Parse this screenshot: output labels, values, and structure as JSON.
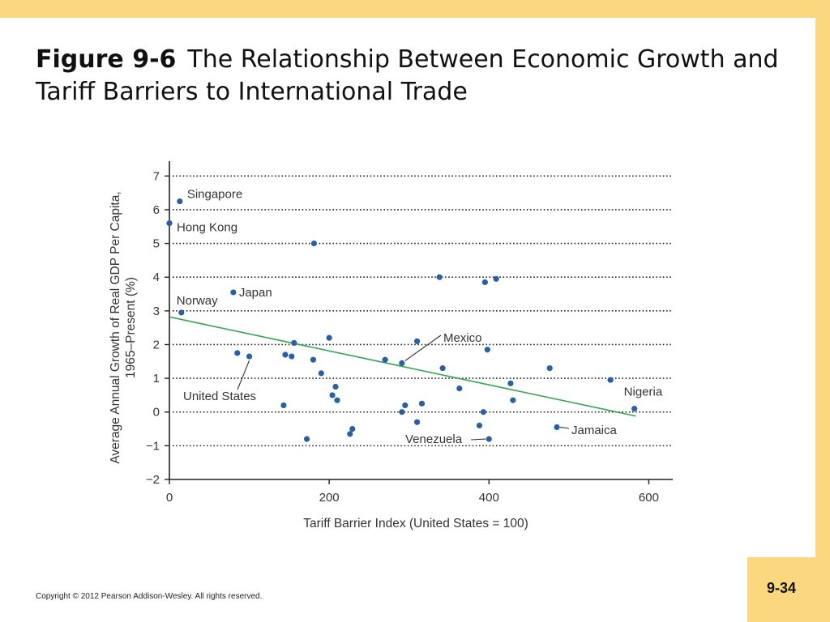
{
  "slide": {
    "title_prefix": "Figure 9-6",
    "title_text": "The Relationship Between Economic Growth and Tariff Barriers to International Trade",
    "copyright": "Copyright © 2012 Pearson Addison-Wesley. All rights reserved.",
    "page_number": "9-34"
  },
  "colors": {
    "banner": "#fbd87f",
    "points": "#2b5fa3",
    "trend_line": "#3aa655",
    "gridlines": "#222222"
  },
  "chart_data": {
    "type": "scatter",
    "title": "",
    "xlabel": "Tariff Barrier Index (United States = 100)",
    "ylabel": [
      "Average Annual Growth of Real GDP Per Capita,",
      "1965–Present (%)"
    ],
    "xlim": [
      0,
      630
    ],
    "ylim": [
      -2,
      7.2
    ],
    "xticks": [
      0,
      200,
      400,
      600
    ],
    "xtick_labels": [
      "0",
      "200",
      "400",
      "600"
    ],
    "yticks": [
      -2,
      -1,
      0,
      1,
      2,
      3,
      4,
      5,
      6,
      7
    ],
    "ytick_labels": [
      "−2",
      "−1",
      "0",
      "1",
      "2",
      "3",
      "4",
      "5",
      "6",
      "7"
    ],
    "grid": "horizontal dotted",
    "points": [
      {
        "x": 13,
        "y": 6.25
      },
      {
        "x": 0,
        "y": 5.6
      },
      {
        "x": 15,
        "y": 2.95
      },
      {
        "x": 80,
        "y": 3.55
      },
      {
        "x": 85,
        "y": 1.75
      },
      {
        "x": 100,
        "y": 1.65
      },
      {
        "x": 143,
        "y": 0.2
      },
      {
        "x": 145,
        "y": 1.7
      },
      {
        "x": 153,
        "y": 1.65
      },
      {
        "x": 156,
        "y": 2.05
      },
      {
        "x": 172,
        "y": -0.8
      },
      {
        "x": 181,
        "y": 5.0
      },
      {
        "x": 180,
        "y": 1.55
      },
      {
        "x": 190,
        "y": 1.15
      },
      {
        "x": 200,
        "y": 2.2
      },
      {
        "x": 204,
        "y": 0.5
      },
      {
        "x": 208,
        "y": 0.75
      },
      {
        "x": 210,
        "y": 0.35
      },
      {
        "x": 226,
        "y": -0.65
      },
      {
        "x": 229,
        "y": -0.5
      },
      {
        "x": 270,
        "y": 1.55
      },
      {
        "x": 291,
        "y": 1.45
      },
      {
        "x": 291,
        "y": 0.0
      },
      {
        "x": 295,
        "y": 0.2
      },
      {
        "x": 310,
        "y": 2.1
      },
      {
        "x": 310,
        "y": -0.3
      },
      {
        "x": 316,
        "y": 0.25
      },
      {
        "x": 338,
        "y": 4.0
      },
      {
        "x": 342,
        "y": 1.3
      },
      {
        "x": 363,
        "y": 0.7
      },
      {
        "x": 388,
        "y": -0.4
      },
      {
        "x": 393,
        "y": 0.0
      },
      {
        "x": 395,
        "y": 3.85
      },
      {
        "x": 398,
        "y": 1.85
      },
      {
        "x": 400,
        "y": -0.8
      },
      {
        "x": 409,
        "y": 3.95
      },
      {
        "x": 427,
        "y": 0.85
      },
      {
        "x": 430,
        "y": 0.35
      },
      {
        "x": 476,
        "y": 1.3
      },
      {
        "x": 485,
        "y": -0.45
      },
      {
        "x": 552,
        "y": 0.95
      },
      {
        "x": 582,
        "y": 0.1
      }
    ],
    "trend_line": {
      "x": [
        0,
        584
      ],
      "y": [
        2.82,
        -0.12
      ]
    },
    "annotations": [
      {
        "text": "Singapore",
        "x": 13,
        "y": 6.25,
        "leader": false
      },
      {
        "text": "Hong Kong",
        "x": 0,
        "y": 5.6,
        "leader": false
      },
      {
        "text": "Norway",
        "x": 15,
        "y": 2.95,
        "leader": false
      },
      {
        "text": "Japan",
        "x": 80,
        "y": 3.55,
        "leader": false
      },
      {
        "text": "United States",
        "x": 100,
        "y": 1.65,
        "leader": true
      },
      {
        "text": "Mexico",
        "x": 291,
        "y": 1.45,
        "leader": true
      },
      {
        "text": "Venezuela",
        "x": 400,
        "y": -0.8,
        "leader": true
      },
      {
        "text": "Jamaica",
        "x": 485,
        "y": -0.45,
        "leader": true
      },
      {
        "text": "Nigeria",
        "x": 582,
        "y": 0.1,
        "leader": false
      }
    ]
  }
}
